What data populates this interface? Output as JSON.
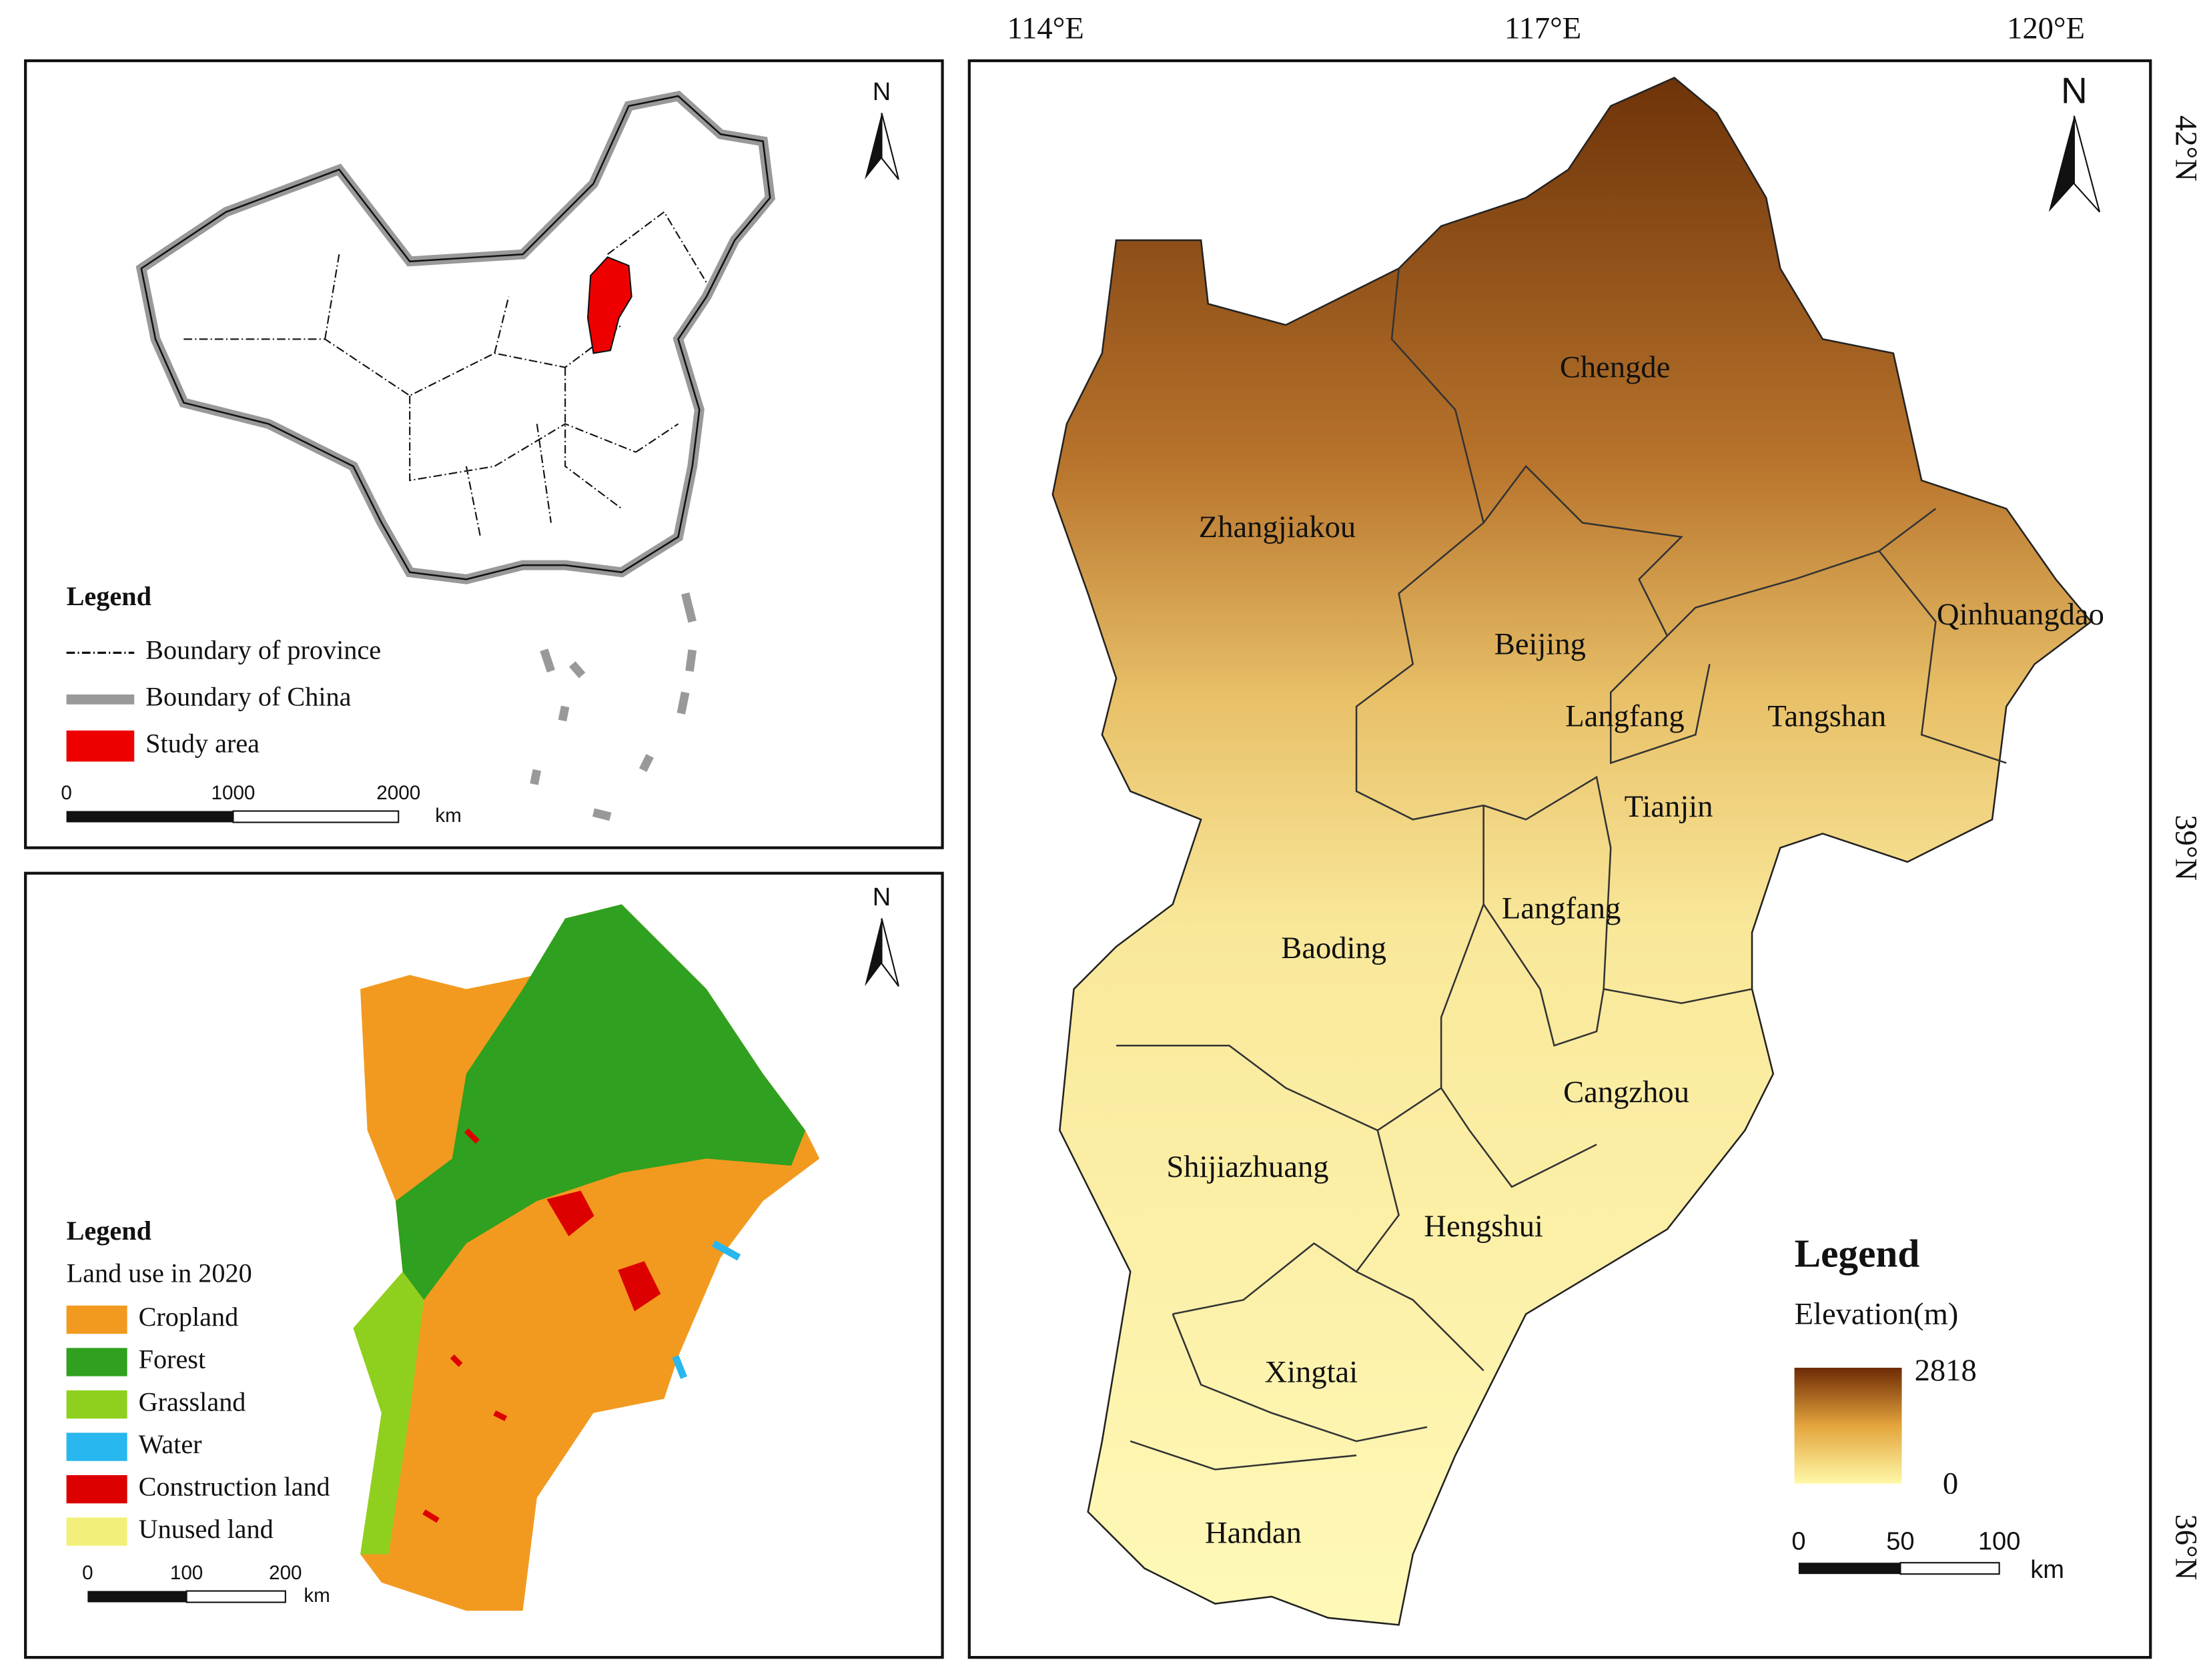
{
  "china_map": {
    "north": "N",
    "legend": {
      "title": "Legend",
      "items": [
        "Boundary of province",
        "Boundary of China",
        "Study area"
      ]
    },
    "scale": {
      "ticks": [
        "0",
        "1000",
        "2000"
      ],
      "unit": "km"
    }
  },
  "landuse_map": {
    "north": "N",
    "legend": {
      "title": "Legend",
      "subtitle": "Land use in 2020",
      "items": [
        "Cropland",
        "Forest",
        "Grassland",
        "Water",
        "Construction land",
        "Unused land"
      ]
    },
    "scale": {
      "ticks": [
        "0",
        "100",
        "200"
      ],
      "unit": "km"
    }
  },
  "elevation_map": {
    "north": "N",
    "lon_labels": [
      "114°E",
      "117°E",
      "120°E"
    ],
    "lat_labels": [
      "42°N",
      "39°N",
      "36°N"
    ],
    "cities": [
      "Chengde",
      "Zhangjiakou",
      "Beijing",
      "Qinhuangdao",
      "Langfang",
      "Tangshan",
      "Tianjin",
      "Langfang",
      "Baoding",
      "Cangzhou",
      "Shijiazhuang",
      "Hengshui",
      "Xingtai",
      "Handan"
    ],
    "legend": {
      "title": "Legend",
      "subtitle": "Elevation(m)",
      "max": "2818",
      "min": "0"
    },
    "scale": {
      "ticks": [
        "0",
        "50",
        "100"
      ],
      "unit": "km"
    }
  }
}
